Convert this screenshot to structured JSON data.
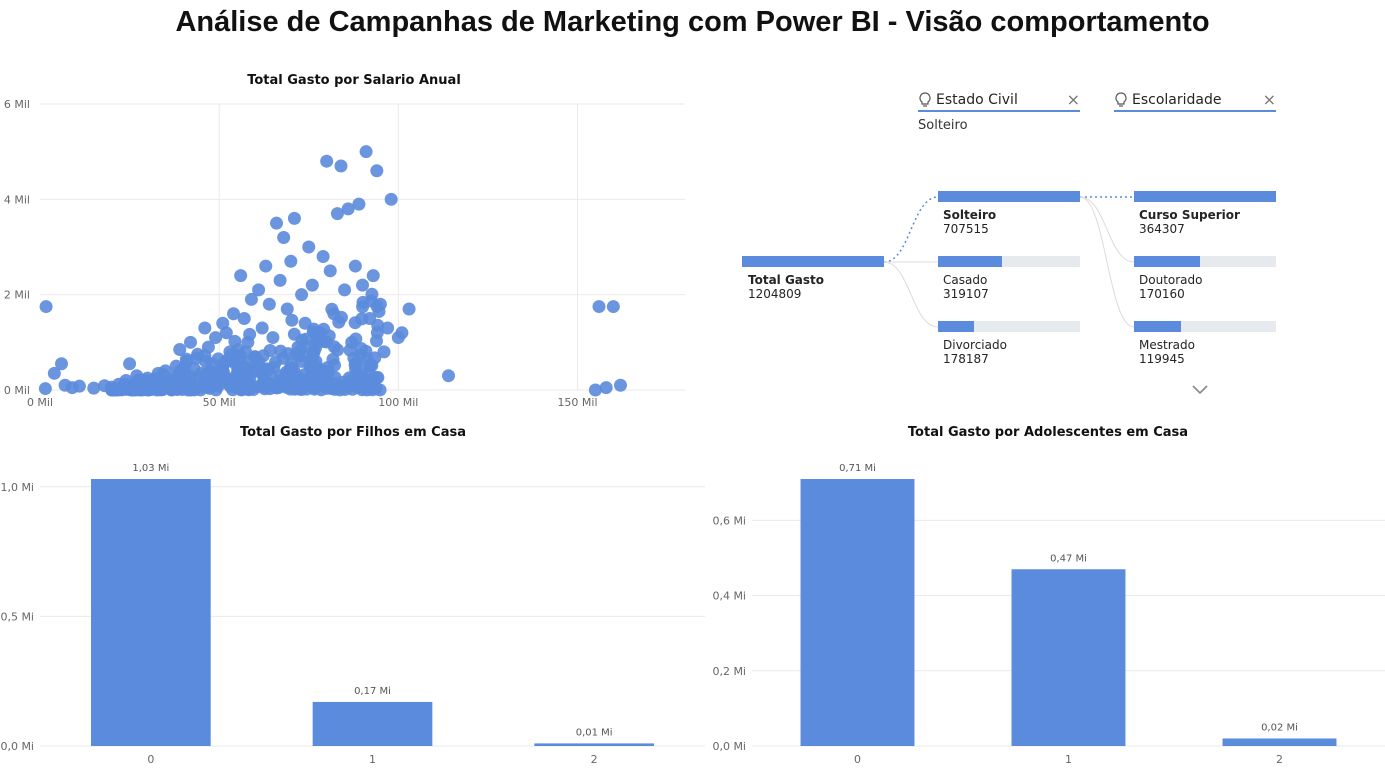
{
  "page_title": "Análise de Campanhas de Marketing com Power BI - Visão comportamento",
  "colors": {
    "accent": "#5b8bdc",
    "bar_track": "#e6e9ee",
    "grid": "#e9e9e9",
    "text": "#252423"
  },
  "chart_data": [
    {
      "id": "scatter",
      "type": "scatter",
      "title": "Total Gasto por Salario Anual",
      "xlabel": "",
      "ylabel": "",
      "xlim": [
        0,
        180000
      ],
      "ylim": [
        0,
        6000
      ],
      "x_ticks": [
        {
          "v": 0,
          "label": "0 Mil"
        },
        {
          "v": 50000,
          "label": "50 Mil"
        },
        {
          "v": 100000,
          "label": "100 Mil"
        },
        {
          "v": 150000,
          "label": "150 Mil"
        }
      ],
      "y_ticks": [
        {
          "v": 0,
          "label": "0 Mil"
        },
        {
          "v": 2000,
          "label": "2 Mil"
        },
        {
          "v": 4000,
          "label": "4 Mil"
        },
        {
          "v": 6000,
          "label": "6 Mil"
        }
      ],
      "points": [
        [
          1700,
          1750
        ],
        [
          1500,
          30
        ],
        [
          4000,
          350
        ],
        [
          6000,
          550
        ],
        [
          7000,
          100
        ],
        [
          9000,
          50
        ],
        [
          11000,
          80
        ],
        [
          15000,
          40
        ],
        [
          18000,
          90
        ],
        [
          20000,
          60
        ],
        [
          22000,
          120
        ],
        [
          24000,
          200
        ],
        [
          25000,
          550
        ],
        [
          27000,
          300
        ],
        [
          28000,
          150
        ],
        [
          30000,
          250
        ],
        [
          31000,
          100
        ],
        [
          33000,
          350
        ],
        [
          35000,
          400
        ],
        [
          36000,
          200
        ],
        [
          38000,
          500
        ],
        [
          39000,
          850
        ],
        [
          40000,
          300
        ],
        [
          41000,
          600
        ],
        [
          42000,
          1000
        ],
        [
          43000,
          450
        ],
        [
          44000,
          750
        ],
        [
          45000,
          350
        ],
        [
          46000,
          1300
        ],
        [
          47000,
          900
        ],
        [
          48000,
          550
        ],
        [
          49000,
          1100
        ],
        [
          50000,
          400
        ],
        [
          51000,
          1400
        ],
        [
          52000,
          1200
        ],
        [
          53000,
          800
        ],
        [
          54000,
          1600
        ],
        [
          55000,
          600
        ],
        [
          56000,
          2400
        ],
        [
          57000,
          1500
        ],
        [
          58000,
          1000
        ],
        [
          59000,
          1900
        ],
        [
          60000,
          700
        ],
        [
          61000,
          2100
        ],
        [
          62000,
          1300
        ],
        [
          63000,
          2600
        ],
        [
          64000,
          1800
        ],
        [
          65000,
          1100
        ],
        [
          66000,
          3500
        ],
        [
          67000,
          2300
        ],
        [
          68000,
          3200
        ],
        [
          69000,
          1700
        ],
        [
          70000,
          2700
        ],
        [
          71000,
          3600
        ],
        [
          72000,
          900
        ],
        [
          73000,
          2000
        ],
        [
          74000,
          1400
        ],
        [
          75000,
          3000
        ],
        [
          76000,
          2200
        ],
        [
          77000,
          600
        ],
        [
          78000,
          1200
        ],
        [
          79000,
          2800
        ],
        [
          80000,
          4800
        ],
        [
          81000,
          2500
        ],
        [
          82000,
          1600
        ],
        [
          83000,
          3700
        ],
        [
          84000,
          4700
        ],
        [
          85000,
          2100
        ],
        [
          86000,
          3800
        ],
        [
          87000,
          1000
        ],
        [
          88000,
          2600
        ],
        [
          89000,
          3900
        ],
        [
          90000,
          2200
        ],
        [
          91000,
          5000
        ],
        [
          92000,
          1500
        ],
        [
          93000,
          2400
        ],
        [
          94000,
          4600
        ],
        [
          95000,
          1800
        ],
        [
          96000,
          800
        ],
        [
          97000,
          1300
        ],
        [
          98000,
          4000
        ],
        [
          100000,
          1100
        ],
        [
          101000,
          1200
        ],
        [
          103000,
          1700
        ],
        [
          114000,
          300
        ],
        [
          156000,
          1750
        ],
        [
          160000,
          1750
        ],
        [
          155000,
          0
        ],
        [
          158000,
          50
        ],
        [
          162000,
          100
        ]
      ]
    },
    {
      "id": "filhos",
      "type": "bar",
      "title": "Total Gasto por Filhos em Casa",
      "categories": [
        "0",
        "1",
        "2"
      ],
      "values": [
        1.03,
        0.17,
        0.01
      ],
      "data_labels": [
        "1,03 Mi",
        "0,17 Mi",
        "0,01 Mi"
      ],
      "ylim": [
        0,
        1.03
      ],
      "y_ticks": [
        {
          "v": 0,
          "label": "0,0 Mi"
        },
        {
          "v": 0.5,
          "label": "0,5 Mi"
        },
        {
          "v": 1.0,
          "label": "1,0 Mi"
        }
      ]
    },
    {
      "id": "adolescentes",
      "type": "bar",
      "title": "Total Gasto por Adolescentes em Casa",
      "categories": [
        "0",
        "1",
        "2"
      ],
      "values": [
        0.71,
        0.47,
        0.02
      ],
      "data_labels": [
        "0,71 Mi",
        "0,47 Mi",
        "0,02 Mi"
      ],
      "ylim": [
        0,
        0.71
      ],
      "y_ticks": [
        {
          "v": 0,
          "label": "0,0 Mi"
        },
        {
          "v": 0.2,
          "label": "0,2 Mi"
        },
        {
          "v": 0.4,
          "label": "0,4 Mi"
        },
        {
          "v": 0.6,
          "label": "0,6 Mi"
        }
      ]
    }
  ],
  "decomp": {
    "slicers": [
      {
        "name": "Estado Civil",
        "value": "Solteiro",
        "icon": "lightbulb-icon",
        "close": "×"
      },
      {
        "name": "Escolaridade",
        "value": "",
        "icon": "lightbulb-icon",
        "close": "×"
      }
    ],
    "root": {
      "label": "Total Gasto",
      "value": "1204809",
      "fraction": 1.0
    },
    "level1": [
      {
        "label": "Solteiro",
        "value": "707515",
        "fraction": 1.0,
        "selected": true
      },
      {
        "label": "Casado",
        "value": "319107",
        "fraction": 0.451
      },
      {
        "label": "Divorciado",
        "value": "178187",
        "fraction": 0.252
      }
    ],
    "level2": [
      {
        "label": "Curso Superior",
        "value": "364307",
        "fraction": 1.0,
        "selected": true
      },
      {
        "label": "Doutorado",
        "value": "170160",
        "fraction": 0.467
      },
      {
        "label": "Mestrado",
        "value": "119945",
        "fraction": 0.329
      }
    ],
    "expand_icon": "chevron-down-icon"
  }
}
